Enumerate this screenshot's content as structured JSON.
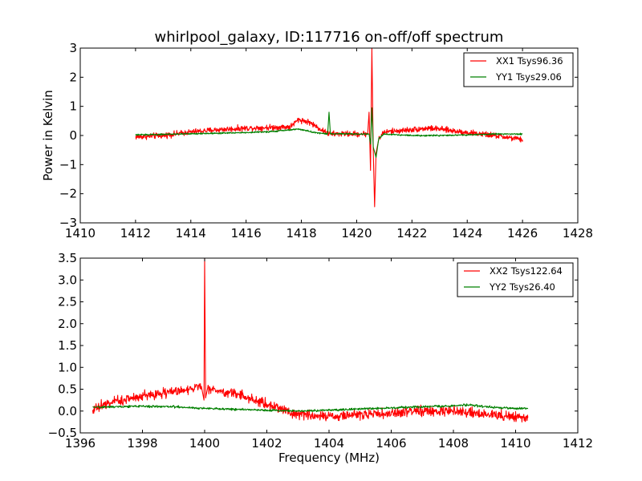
{
  "chart_data": [
    {
      "type": "line",
      "title": "whirlpool_galaxy, ID:117716 on-off/off spectrum",
      "xlabel": "",
      "ylabel": "Power in Kelvin",
      "xlim": [
        1410,
        1428
      ],
      "ylim": [
        -3,
        3
      ],
      "xticks": [
        1410,
        1412,
        1414,
        1416,
        1418,
        1420,
        1422,
        1424,
        1426,
        1428
      ],
      "yticks": [
        -3,
        -2,
        -1,
        0,
        1,
        2,
        3
      ],
      "xtick_labels": [
        "1410",
        "1412",
        "1414",
        "1416",
        "1418",
        "1420",
        "1422",
        "1424",
        "1426",
        "1428"
      ],
      "ytick_labels": [
        "−3",
        "−2",
        "−1",
        "0",
        "1",
        "2",
        "3"
      ],
      "grid": false,
      "legend_position": "top-right",
      "series": [
        {
          "name": "XX1 Tsys96.36",
          "color": "#ff0000",
          "noise": 0.06,
          "x": [
            1412.0,
            1413.0,
            1414.0,
            1415.0,
            1416.0,
            1417.0,
            1417.6,
            1417.9,
            1418.3,
            1418.8,
            1419.0,
            1419.5,
            1420.0,
            1420.4,
            1420.45,
            1420.5,
            1420.55,
            1420.6,
            1420.65,
            1420.7,
            1420.8,
            1421.0,
            1422.0,
            1422.6,
            1423.0,
            1424.0,
            1425.0,
            1426.0
          ],
          "y": [
            -0.05,
            0.0,
            0.12,
            0.2,
            0.25,
            0.28,
            0.3,
            0.55,
            0.45,
            0.15,
            0.05,
            0.06,
            0.05,
            0.06,
            0.8,
            -1.2,
            3.0,
            -0.5,
            -2.45,
            -0.6,
            -0.1,
            0.12,
            0.2,
            0.25,
            0.22,
            0.1,
            0.0,
            -0.15
          ]
        },
        {
          "name": "YY1 Tsys29.06",
          "color": "#008000",
          "noise": 0.015,
          "x": [
            1412.0,
            1413.0,
            1414.0,
            1415.0,
            1416.0,
            1417.0,
            1417.9,
            1418.5,
            1418.95,
            1419.0,
            1419.05,
            1420.0,
            1420.45,
            1420.5,
            1420.55,
            1420.6,
            1420.7,
            1420.8,
            1421.0,
            1422.0,
            1423.0,
            1424.0,
            1425.0,
            1426.0
          ],
          "y": [
            0.02,
            0.04,
            0.06,
            0.08,
            0.1,
            0.14,
            0.22,
            0.1,
            0.05,
            0.8,
            0.06,
            0.05,
            0.05,
            -0.3,
            0.95,
            -0.4,
            -0.75,
            -0.1,
            0.05,
            0.0,
            0.0,
            0.02,
            0.05,
            0.05
          ]
        }
      ]
    },
    {
      "type": "line",
      "title": "",
      "xlabel": "Frequency (MHz)",
      "ylabel": "",
      "xlim": [
        1396,
        1412
      ],
      "ylim": [
        -0.5,
        3.5
      ],
      "xticks": [
        1396,
        1398,
        1400,
        1402,
        1404,
        1406,
        1408,
        1410,
        1412
      ],
      "yticks": [
        -0.5,
        0.0,
        0.5,
        1.0,
        1.5,
        2.0,
        2.5,
        3.0,
        3.5
      ],
      "xtick_labels": [
        "1396",
        "1398",
        "1400",
        "1402",
        "1404",
        "1406",
        "1408",
        "1410",
        "1412"
      ],
      "ytick_labels": [
        "−0.5",
        "0.0",
        "0.5",
        "1.0",
        "1.5",
        "2.0",
        "2.5",
        "3.0",
        "3.5"
      ],
      "grid": false,
      "legend_position": "top-right",
      "series": [
        {
          "name": "XX2 Tsys122.64",
          "color": "#ff0000",
          "noise": 0.07,
          "x": [
            1396.4,
            1397.0,
            1398.0,
            1399.0,
            1399.9,
            1399.98,
            1400.0,
            1400.03,
            1400.1,
            1401.0,
            1402.0,
            1402.5,
            1403.0,
            1404.0,
            1405.0,
            1406.0,
            1407.0,
            1408.0,
            1409.0,
            1410.0,
            1410.4
          ],
          "y": [
            0.05,
            0.2,
            0.35,
            0.45,
            0.55,
            0.25,
            3.5,
            0.3,
            0.5,
            0.4,
            0.15,
            0.05,
            -0.08,
            -0.12,
            -0.08,
            -0.05,
            0.0,
            0.0,
            -0.08,
            -0.12,
            -0.15
          ]
        },
        {
          "name": "YY2 Tsys26.40",
          "color": "#008000",
          "noise": 0.015,
          "x": [
            1396.4,
            1397.0,
            1398.0,
            1399.0,
            1400.0,
            1401.0,
            1402.0,
            1403.0,
            1404.0,
            1405.0,
            1406.0,
            1407.0,
            1408.0,
            1408.5,
            1409.0,
            1410.0,
            1410.4
          ],
          "y": [
            0.08,
            0.1,
            0.11,
            0.1,
            0.06,
            0.04,
            0.02,
            0.0,
            0.02,
            0.05,
            0.07,
            0.1,
            0.12,
            0.14,
            0.1,
            0.06,
            0.06
          ]
        }
      ]
    }
  ]
}
